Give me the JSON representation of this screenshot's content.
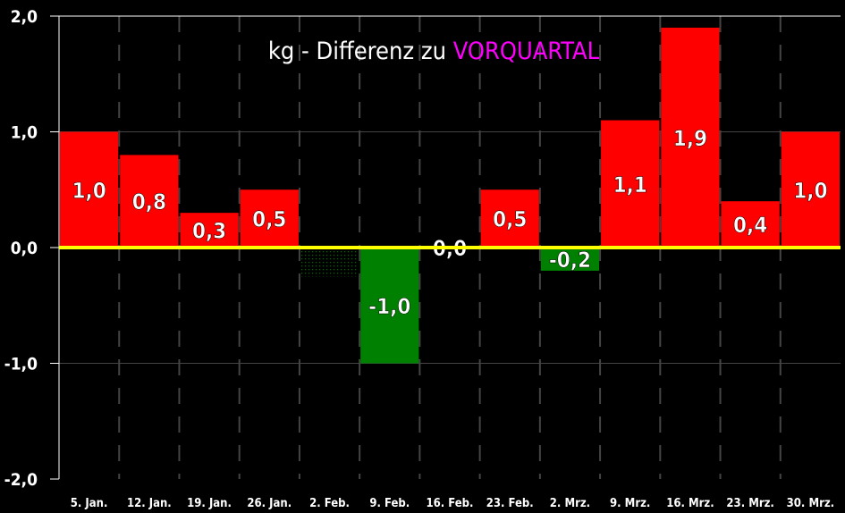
{
  "chart_data": {
    "type": "bar",
    "title_parts": [
      "kg - Differenz zu ",
      "VORQUARTAL"
    ],
    "title_colors": [
      "#ffffff",
      "#ff00ff"
    ],
    "categories": [
      "5. Jan.",
      "12. Jan.",
      "19. Jan.",
      "26. Jan.",
      "2. Feb.",
      "9. Feb.",
      "16. Feb.",
      "23. Feb.",
      "2. Mrz.",
      "9. Mrz.",
      "16. Mrz.",
      "23. Mrz.",
      "30. Mrz."
    ],
    "values": [
      1.0,
      0.8,
      0.3,
      0.5,
      -0.25,
      -1.0,
      0.0,
      0.5,
      -0.2,
      1.1,
      1.9,
      0.4,
      1.0
    ],
    "data_labels": [
      "1,0",
      "0,8",
      "0,3",
      "0,5",
      "",
      "-1,0",
      "0,0",
      "0,5",
      "-0,2",
      "1,1",
      "1,9",
      "0,4",
      "1,0"
    ],
    "ylim": [
      -2,
      2
    ],
    "yticks": [
      2,
      1,
      0,
      -1,
      -2
    ],
    "ytick_labels": [
      "2,0",
      "1,0",
      "0,0",
      "-1,0",
      "-2,0"
    ],
    "xlabel": "",
    "ylabel": "",
    "colors": {
      "positive": "#ff0000",
      "negative": "#008000",
      "zero_line": "#ffff00",
      "grid": "#444444",
      "pattern_bar": "#006600"
    },
    "grid": true
  }
}
